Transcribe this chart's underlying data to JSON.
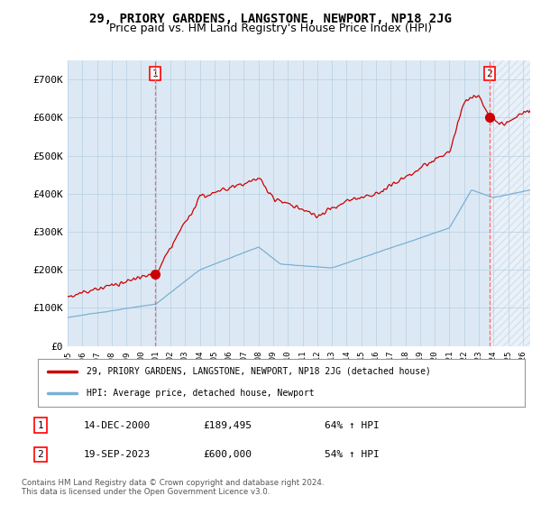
{
  "title": "29, PRIORY GARDENS, LANGSTONE, NEWPORT, NP18 2JG",
  "subtitle": "Price paid vs. HM Land Registry's House Price Index (HPI)",
  "ylabel_ticks": [
    "£0",
    "£100K",
    "£200K",
    "£300K",
    "£400K",
    "£500K",
    "£600K",
    "£700K"
  ],
  "ytick_values": [
    0,
    100000,
    200000,
    300000,
    400000,
    500000,
    600000,
    700000
  ],
  "ylim": [
    0,
    750000
  ],
  "xlim_start": 1995.0,
  "xlim_end": 2026.5,
  "transaction1_date": 2000.96,
  "transaction1_price": 189495,
  "transaction2_date": 2023.72,
  "transaction2_price": 600000,
  "hpi_line_color": "#7ab0d4",
  "price_line_color": "#cc0000",
  "vline_color": "#ff6666",
  "chart_bg_color": "#dce9f5",
  "background_color": "#ffffff",
  "grid_color": "#b8cfe0",
  "hatch_color": "#c8d8e8",
  "legend_label1": "29, PRIORY GARDENS, LANGSTONE, NEWPORT, NP18 2JG (detached house)",
  "legend_label2": "HPI: Average price, detached house, Newport",
  "table_row1": [
    "1",
    "14-DEC-2000",
    "£189,495",
    "64% ↑ HPI"
  ],
  "table_row2": [
    "2",
    "19-SEP-2023",
    "£600,000",
    "54% ↑ HPI"
  ],
  "footnote": "Contains HM Land Registry data © Crown copyright and database right 2024.\nThis data is licensed under the Open Government Licence v3.0."
}
